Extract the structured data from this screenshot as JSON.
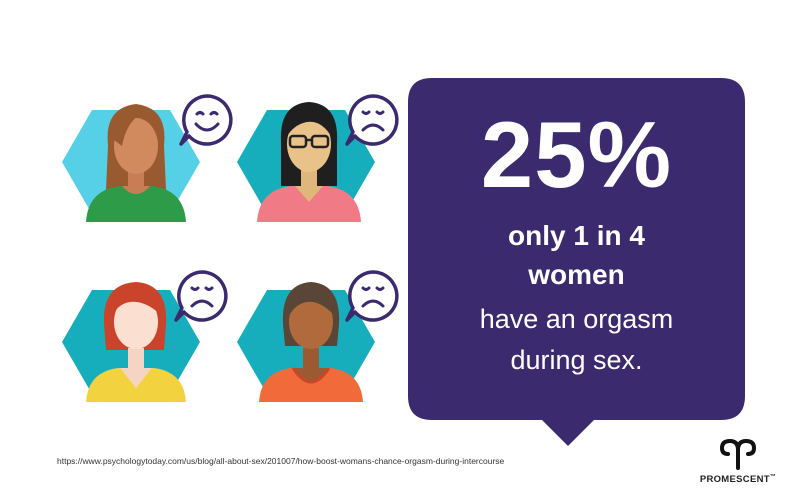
{
  "colors": {
    "callout_bg": "#3b2a6e",
    "hex_light_blue": "#55d0e6",
    "hex_teal": "#16aebd",
    "bubble_stroke": "#3b2a6e",
    "text_white": "#ffffff"
  },
  "avatars": [
    {
      "name": "woman-brown-hair-green-top",
      "mood": "happy-face-icon"
    },
    {
      "name": "woman-glasses-pink-top",
      "mood": "sad-face-icon"
    },
    {
      "name": "woman-red-hair-yellow-top",
      "mood": "sad-face-icon"
    },
    {
      "name": "woman-dark-skin-orange-top",
      "mood": "sad-face-icon"
    }
  ],
  "stat": {
    "percent": "25%",
    "line1": "only 1 in 4",
    "line2": "women",
    "line3": "have an orgasm",
    "line4": "during sex."
  },
  "source": {
    "url": "https://www.psychologytoday.com/us/blog/all-about-sex/201007/how-boost-womans-chance-orgasm-during-intercourse"
  },
  "brand": {
    "name": "PROMESCENT",
    "trademark": "™",
    "logo": "aries-symbol-logo"
  }
}
